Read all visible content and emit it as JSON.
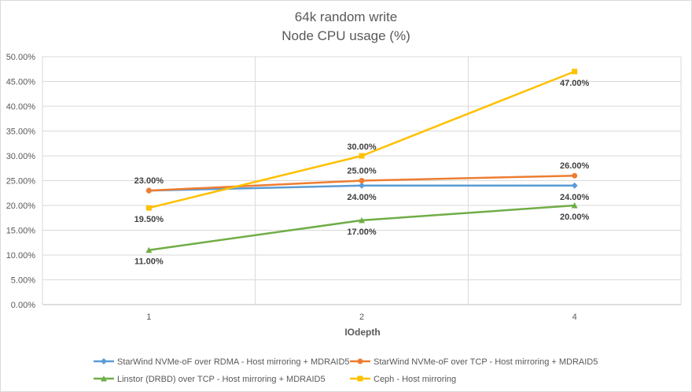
{
  "chart_data": {
    "type": "line",
    "title": "64k random write",
    "subtitle": "Node CPU usage (%)",
    "xlabel": "IOdepth",
    "ylabel": "",
    "categories": [
      "1",
      "2",
      "4"
    ],
    "ylim": [
      0,
      50
    ],
    "ytick_step": 5,
    "y_tick_labels": [
      "0.00%",
      "5.00%",
      "10.00%",
      "15.00%",
      "20.00%",
      "25.00%",
      "30.00%",
      "35.00%",
      "40.00%",
      "45.00%",
      "50.00%"
    ],
    "grid": true,
    "legend_position": "bottom",
    "series": [
      {
        "name": "StarWind NVMe-oF over RDMA - Host mirroring + MDRAID5",
        "values": [
          23,
          24,
          24
        ],
        "color": "#5b9bd5",
        "marker": "diamond",
        "labels": [
          "",
          "24.00%",
          "24.00%"
        ]
      },
      {
        "name": "StarWind NVMe-oF over TCP - Host mirroring + MDRAID5",
        "values": [
          23,
          25,
          26
        ],
        "color": "#ed7d31",
        "marker": "circle",
        "labels": [
          "23.00%",
          "25.00%",
          "26.00%"
        ]
      },
      {
        "name": "Linstor (DRBD) over TCP - Host mirroring + MDRAID5",
        "values": [
          11,
          17,
          20
        ],
        "color": "#70ad47",
        "marker": "triangle",
        "labels": [
          "11.00%",
          "17.00%",
          "20.00%"
        ]
      },
      {
        "name": "Ceph - Host mirroring",
        "values": [
          19.5,
          30,
          47
        ],
        "color": "#ffc000",
        "marker": "square",
        "labels": [
          "19.50%",
          "30.00%",
          "47.00%"
        ]
      }
    ]
  }
}
